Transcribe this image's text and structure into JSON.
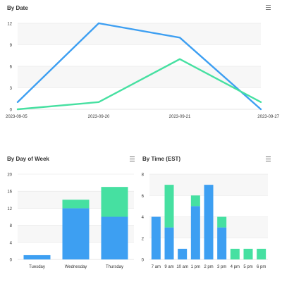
{
  "colors": {
    "blue": "#3d9ff2",
    "green": "#46e0a1",
    "band": "#f7f7f7",
    "grid": "#e6e6e6",
    "axis": "#cccccc",
    "text": "#333333"
  },
  "panels": {
    "by_date": {
      "title": "By Date",
      "menu_icon": "hamburger-menu-icon"
    },
    "by_day": {
      "title": "By Day of Week",
      "menu_icon": "hamburger-menu-icon"
    },
    "by_time": {
      "title": "By Time (EST)",
      "menu_icon": "hamburger-menu-icon"
    }
  },
  "chart_data": [
    {
      "id": "by_date",
      "type": "line",
      "title": "By Date",
      "categories": [
        "2023-09-05",
        "2023-09-20",
        "2023-09-21",
        "2023-09-27"
      ],
      "ylim": [
        0,
        12
      ],
      "yticks": [
        "0",
        "3",
        "6",
        "9",
        "12"
      ],
      "grid": true,
      "series": [
        {
          "color": "#3d9ff2",
          "values": [
            1,
            12,
            10,
            0
          ]
        },
        {
          "color": "#46e0a1",
          "values": [
            0,
            1,
            7,
            1
          ]
        }
      ]
    },
    {
      "id": "by_day",
      "type": "bar",
      "stacked": true,
      "title": "By Day of Week",
      "categories": [
        "Tuesday",
        "Wednesday",
        "Thursday"
      ],
      "ylim": [
        0,
        20
      ],
      "yticks": [
        "0",
        "4",
        "8",
        "12",
        "16",
        "20"
      ],
      "grid": true,
      "series": [
        {
          "color": "#3d9ff2",
          "values": [
            1,
            12,
            10
          ]
        },
        {
          "color": "#46e0a1",
          "values": [
            0,
            2,
            7
          ]
        }
      ]
    },
    {
      "id": "by_time",
      "type": "bar",
      "stacked": true,
      "title": "By Time (EST)",
      "categories": [
        "7 am",
        "9 am",
        "10 am",
        "1 pm",
        "2 pm",
        "3 pm",
        "4 pm",
        "5 pm",
        "6 pm"
      ],
      "ylim": [
        0,
        8
      ],
      "yticks": [
        "0",
        "2",
        "4",
        "6",
        "8"
      ],
      "grid": true,
      "series": [
        {
          "color": "#3d9ff2",
          "values": [
            4,
            3,
            1,
            5,
            7,
            3,
            0,
            0,
            0
          ]
        },
        {
          "color": "#46e0a1",
          "values": [
            0,
            4,
            0,
            1,
            0,
            1,
            1,
            1,
            1
          ]
        }
      ]
    }
  ]
}
